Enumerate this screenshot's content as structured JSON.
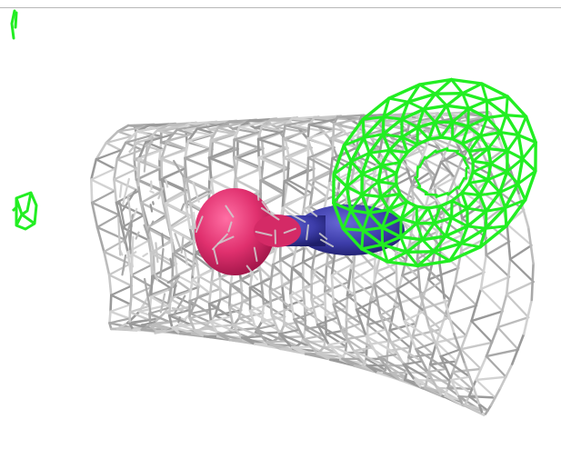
{
  "scene": {
    "background": "#ffffff",
    "frame_line_color": "#b8b8b8",
    "objects": [
      {
        "name": "grey-wireframe-mesh",
        "kind": "wireframe",
        "color": "#b4b4b4"
      },
      {
        "name": "green-wireframe-mesh",
        "kind": "wireframe",
        "color": "#22ee22"
      },
      {
        "name": "pink-ellipsoid",
        "kind": "solid",
        "color": "#e0306e"
      },
      {
        "name": "blue-ellipsoid",
        "kind": "solid",
        "color": "#3c3ca8"
      },
      {
        "name": "green-fragment-small",
        "kind": "wireframe",
        "color": "#22ee22"
      },
      {
        "name": "green-fragment-top",
        "kind": "wireframe",
        "color": "#22ee22"
      }
    ]
  }
}
